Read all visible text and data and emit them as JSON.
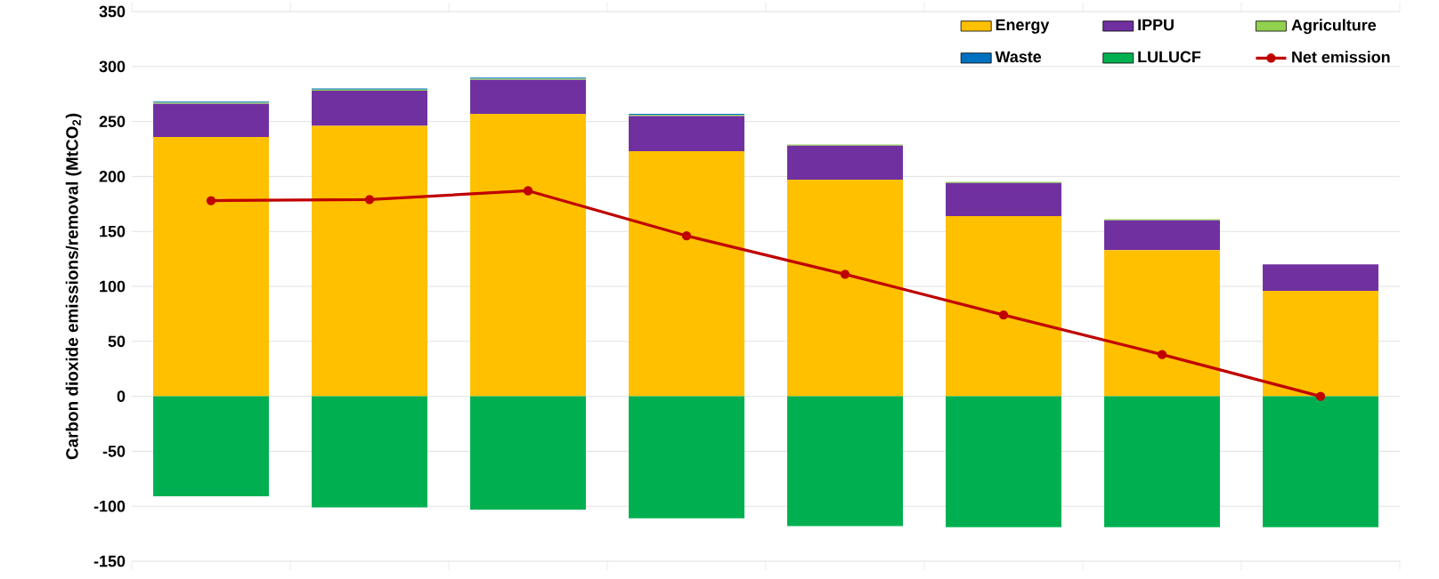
{
  "chart_data": {
    "type": "bar",
    "ylabel": "Carbon dioxide emissions/removal (MtCO$_{2}$)",
    "categories": [
      null,
      null,
      null,
      null,
      null,
      null,
      null,
      null
    ],
    "series": [
      {
        "name": "Energy",
        "color": "#ffc000",
        "values": [
          236,
          246,
          257,
          223,
          197,
          164,
          133,
          96
        ]
      },
      {
        "name": "IPPU",
        "color": "#7030a0",
        "values": [
          30,
          32,
          31,
          32,
          31,
          30,
          27,
          24
        ]
      },
      {
        "name": "Agriculture",
        "color": "#92d050",
        "values": [
          1,
          1,
          1,
          1,
          1,
          1,
          1,
          0
        ]
      },
      {
        "name": "Waste",
        "color": "#0070c0",
        "values": [
          1,
          1,
          1,
          1,
          0,
          0,
          0,
          0
        ]
      },
      {
        "name": "LULUCF",
        "color": "#00b050",
        "values": [
          -91,
          -101,
          -103,
          -111,
          -118,
          -119,
          -119,
          -119
        ]
      },
      {
        "name": "Net emission",
        "color": "#c00000",
        "type": "line",
        "values": [
          178,
          179,
          187,
          146,
          111,
          74,
          38,
          0
        ]
      }
    ],
    "stacked": true,
    "ylim": [
      -150,
      350
    ],
    "yticks": [
      -150,
      -100,
      -50,
      0,
      50,
      100,
      150,
      200,
      250,
      300,
      350
    ],
    "grid": "y",
    "legend": "top right",
    "marker": "circle"
  }
}
